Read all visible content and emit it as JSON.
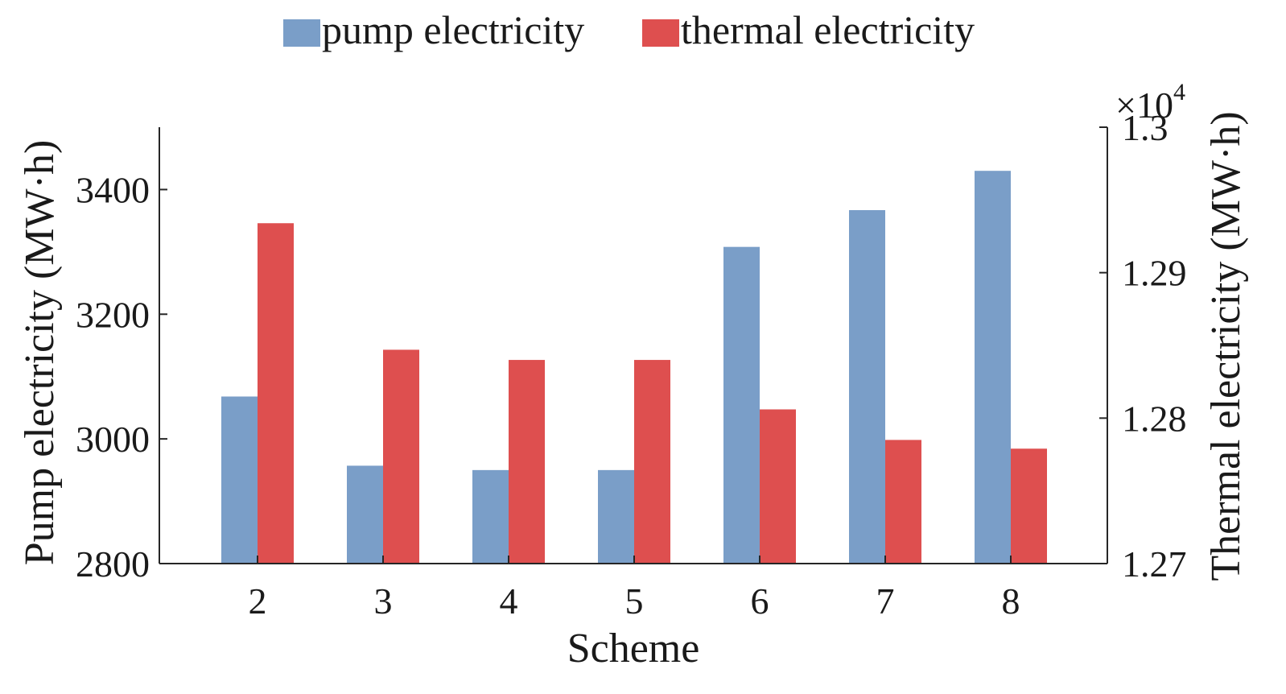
{
  "chart_data": {
    "type": "bar",
    "xlabel": "Scheme",
    "categories": [
      "2",
      "3",
      "4",
      "5",
      "6",
      "7",
      "8"
    ],
    "left_axis": {
      "label": "Pump electricity (MW·h)",
      "ylim": [
        2800,
        3500
      ],
      "ticks": [
        2800,
        3000,
        3200,
        3400
      ],
      "tick_labels": [
        "2800",
        "3000",
        "3200",
        "3400"
      ]
    },
    "right_axis": {
      "label": "Thermal electricity (MW·h)",
      "ylim": [
        12700,
        13000
      ],
      "ticks": [
        12700,
        12800,
        12900,
        13000
      ],
      "tick_labels": [
        "1.27",
        "1.28",
        "1.29",
        "1.3"
      ],
      "exponent_label": "×10",
      "exponent_power": "4"
    },
    "series": [
      {
        "name": "pump electricity",
        "axis": "left",
        "color": "#7a9ec8",
        "values": [
          3068,
          2957,
          2950,
          2950,
          3308,
          3367,
          3430
        ]
      },
      {
        "name": "thermal electricity",
        "axis": "right",
        "color": "#de4f4f",
        "values": [
          12934,
          12847,
          12840,
          12840,
          12806,
          12785,
          12779
        ]
      }
    ],
    "legend_position": "top-center",
    "grid": false
  }
}
